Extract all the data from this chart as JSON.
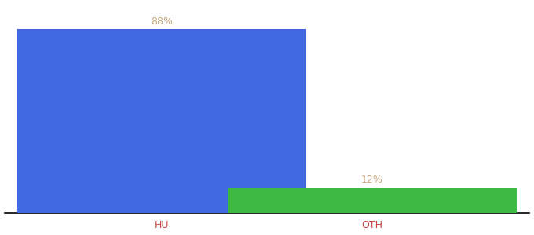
{
  "categories": [
    "HU",
    "OTH"
  ],
  "values": [
    88,
    12
  ],
  "bar_colors": [
    "#4169e1",
    "#3cb943"
  ],
  "label_color": "#c8a882",
  "xlabel_color": "#cc4444",
  "value_labels": [
    "88%",
    "12%"
  ],
  "background_color": "#ffffff",
  "ylim": [
    0,
    100
  ],
  "bar_width": 0.55,
  "label_fontsize": 9,
  "xlabel_fontsize": 9,
  "x_positions": [
    0.3,
    0.7
  ]
}
